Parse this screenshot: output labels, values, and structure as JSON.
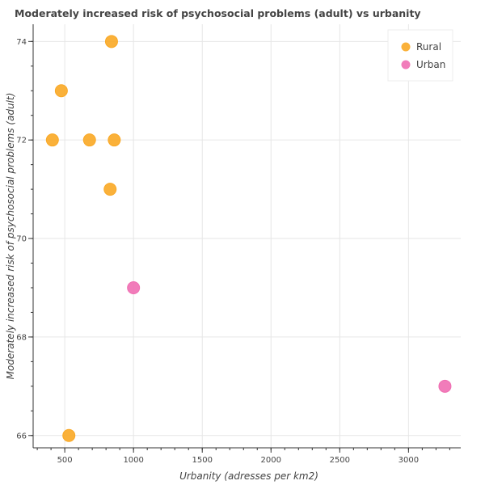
{
  "chart_data": {
    "type": "scatter",
    "title": "Moderately increased risk of psychosocial problems (adult) vs urbanity",
    "xlabel": "Urbanity (adresses per km2)",
    "ylabel": "Moderately increased risk of psychosocial problems (adult)",
    "xlim": [
      270,
      3380
    ],
    "ylim": [
      65.75,
      74.35
    ],
    "xticks": [
      500,
      1000,
      1500,
      2000,
      2500,
      3000
    ],
    "yticks": [
      66,
      68,
      70,
      72,
      74
    ],
    "x_minor_step": 100,
    "y_minor_step": 0.5,
    "grid": true,
    "legend_position": "top-right",
    "series": [
      {
        "name": "Rural",
        "color": "#f9a825",
        "points": [
          {
            "x": 840,
            "y": 74
          },
          {
            "x": 475,
            "y": 73
          },
          {
            "x": 410,
            "y": 72
          },
          {
            "x": 680,
            "y": 72
          },
          {
            "x": 860,
            "y": 72
          },
          {
            "x": 830,
            "y": 71
          },
          {
            "x": 530,
            "y": 66
          }
        ]
      },
      {
        "name": "Urban",
        "color": "#f06eb2",
        "points": [
          {
            "x": 1000,
            "y": 69
          },
          {
            "x": 3265,
            "y": 67
          }
        ]
      }
    ]
  }
}
